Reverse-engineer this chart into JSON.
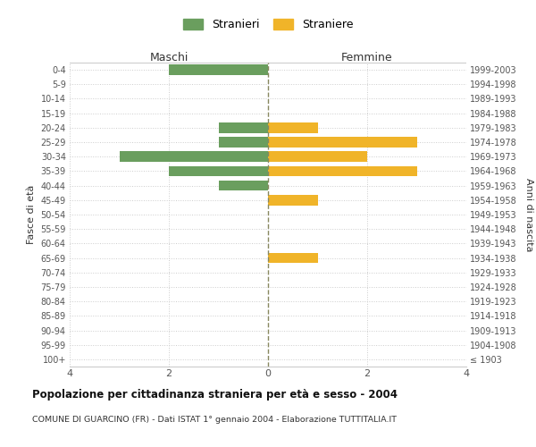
{
  "age_groups": [
    "100+",
    "95-99",
    "90-94",
    "85-89",
    "80-84",
    "75-79",
    "70-74",
    "65-69",
    "60-64",
    "55-59",
    "50-54",
    "45-49",
    "40-44",
    "35-39",
    "30-34",
    "25-29",
    "20-24",
    "15-19",
    "10-14",
    "5-9",
    "0-4"
  ],
  "birth_years": [
    "≤ 1903",
    "1904-1908",
    "1909-1913",
    "1914-1918",
    "1919-1923",
    "1924-1928",
    "1929-1933",
    "1934-1938",
    "1939-1943",
    "1944-1948",
    "1949-1953",
    "1954-1958",
    "1959-1963",
    "1964-1968",
    "1969-1973",
    "1974-1978",
    "1979-1983",
    "1984-1988",
    "1989-1993",
    "1994-1998",
    "1999-2003"
  ],
  "males": [
    0,
    0,
    0,
    0,
    0,
    0,
    0,
    0,
    0,
    0,
    0,
    0,
    1,
    2,
    3,
    1,
    1,
    0,
    0,
    0,
    2
  ],
  "females": [
    0,
    0,
    0,
    0,
    0,
    0,
    0,
    1,
    0,
    0,
    0,
    1,
    0,
    3,
    2,
    3,
    1,
    0,
    0,
    0,
    0
  ],
  "male_color": "#6a9e5e",
  "female_color": "#f0b429",
  "male_label": "Stranieri",
  "female_label": "Straniere",
  "title": "Popolazione per cittadinanza straniera per età e sesso - 2004",
  "subtitle": "COMUNE DI GUARCINO (FR) - Dati ISTAT 1° gennaio 2004 - Elaborazione TUTTITALIA.IT",
  "xlabel_left": "Maschi",
  "xlabel_right": "Femmine",
  "ylabel_left": "Fasce di età",
  "ylabel_right": "Anni di nascita",
  "xlim": 4,
  "background_color": "#ffffff",
  "grid_color": "#cccccc",
  "center_line_color": "#888860"
}
